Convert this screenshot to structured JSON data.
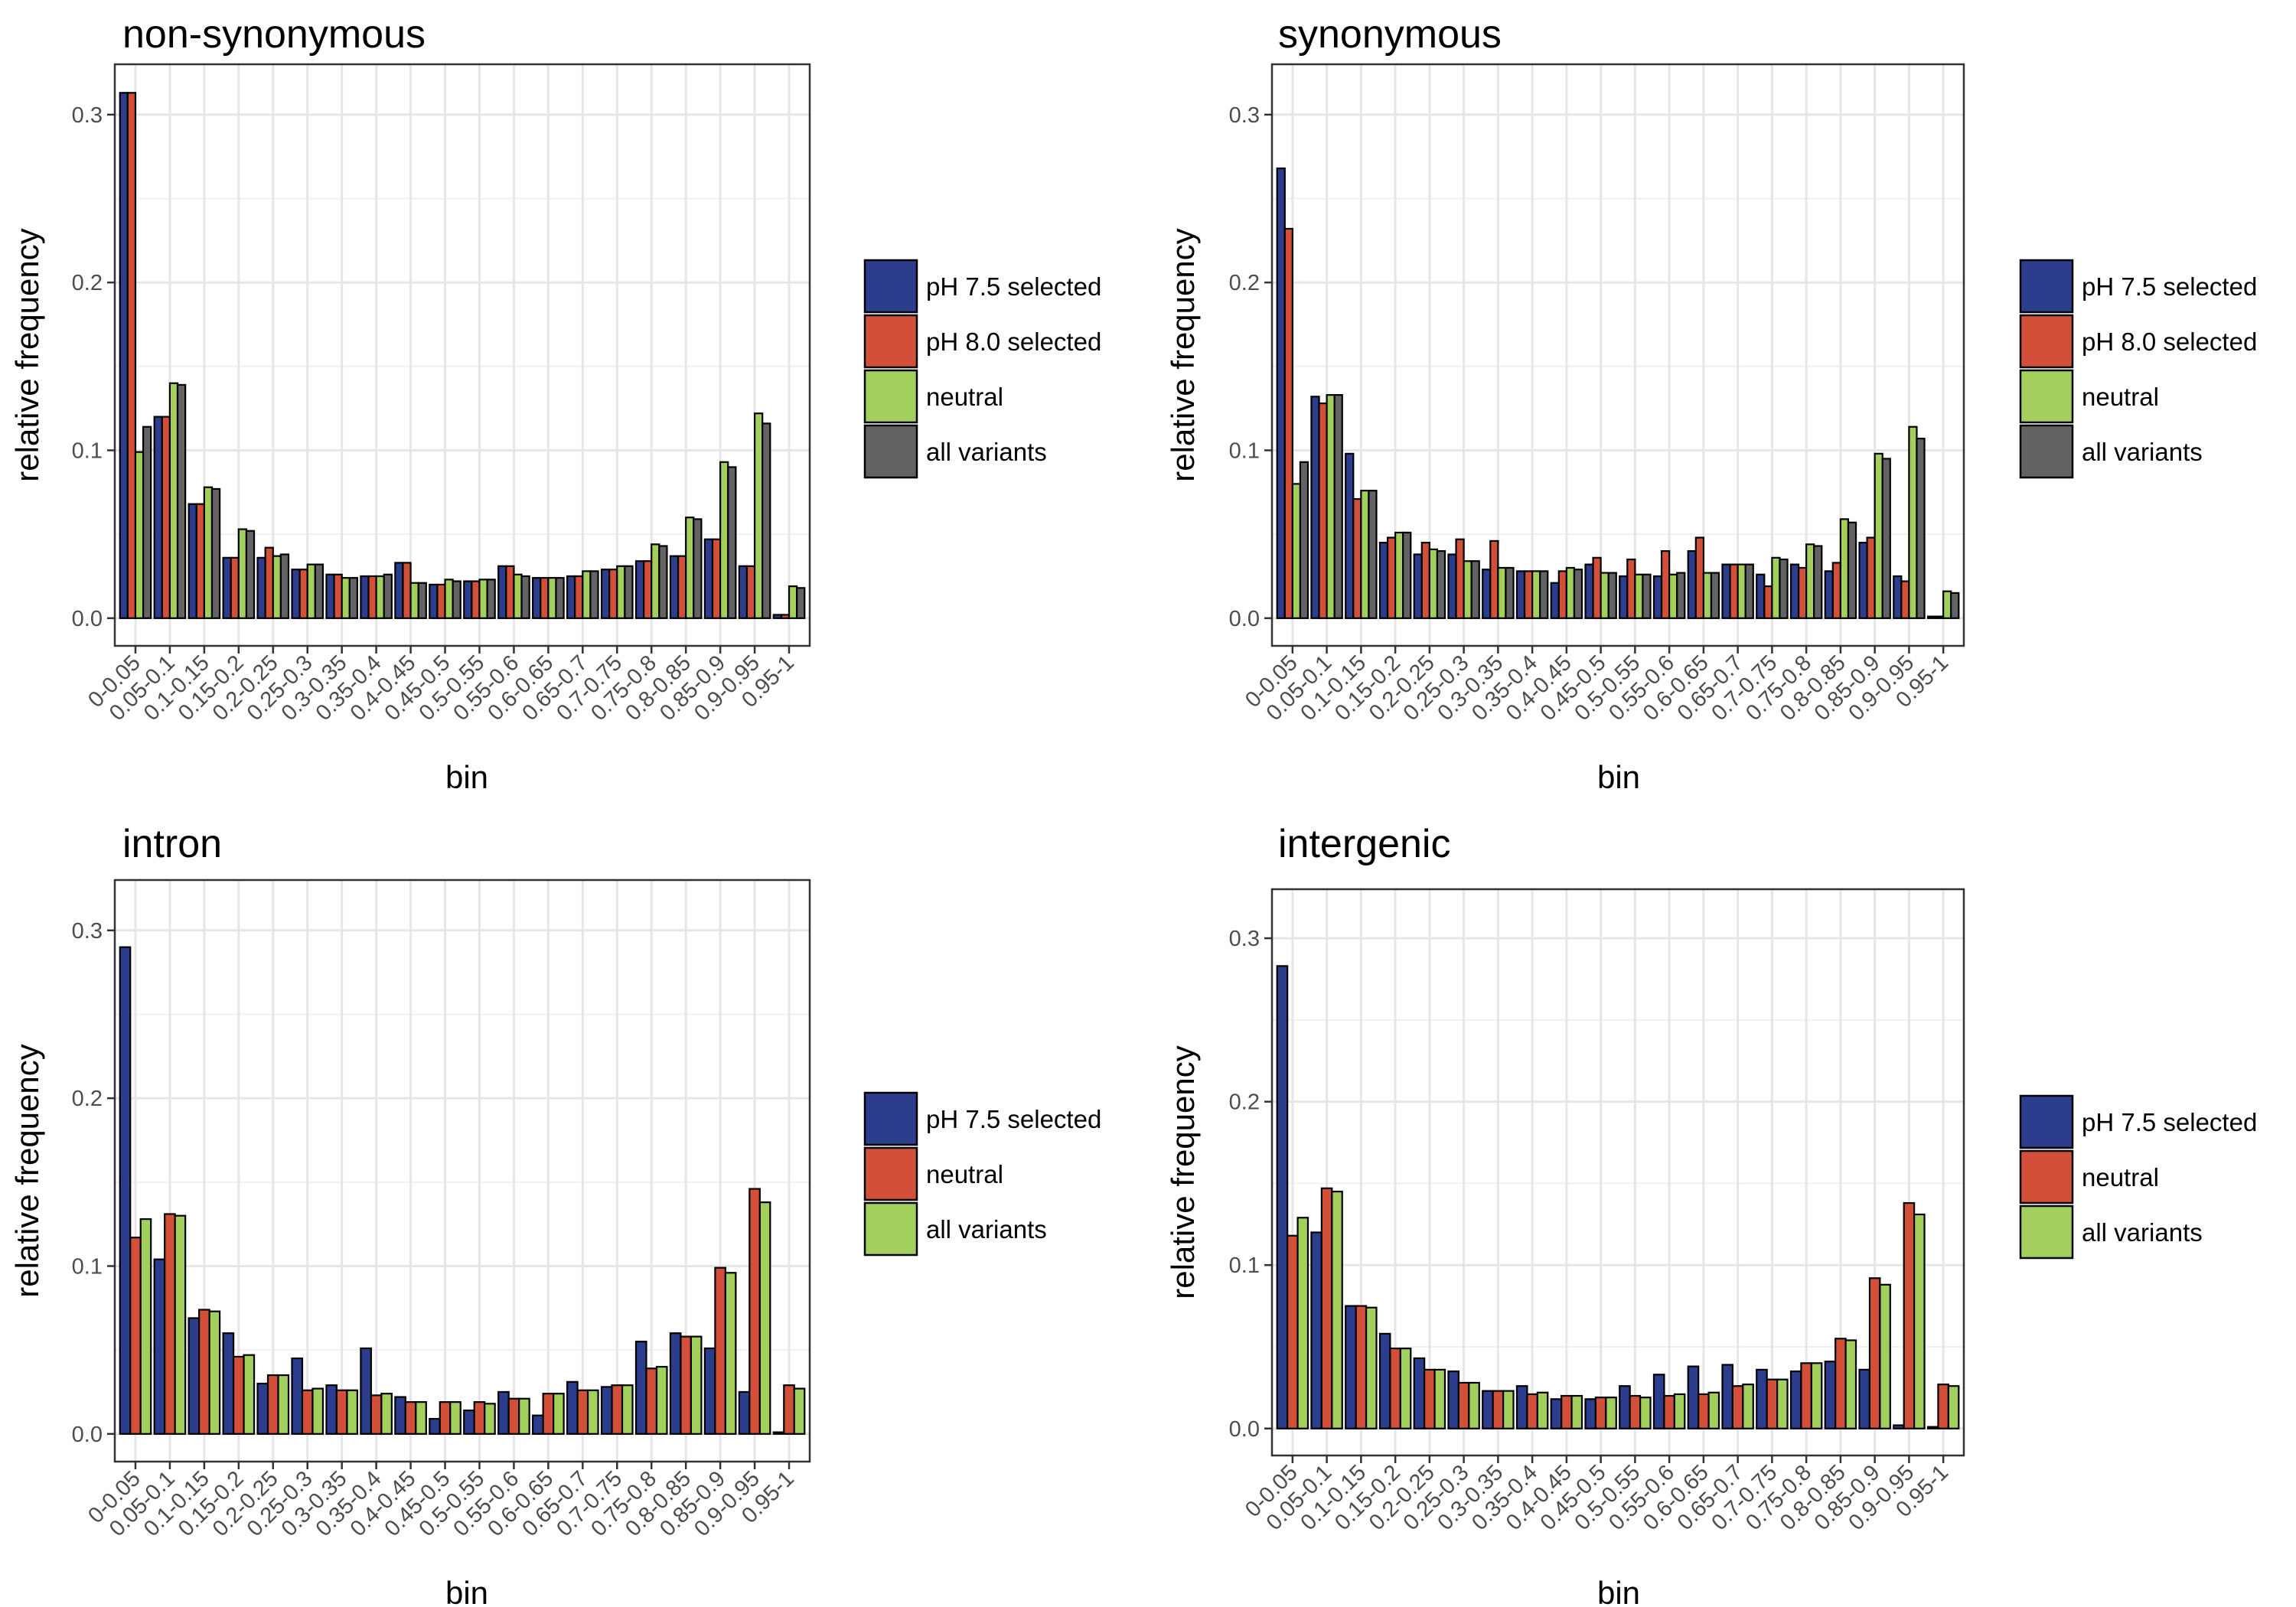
{
  "chart_data": [
    {
      "type": "bar",
      "title": "non-synonymous",
      "xlabel": "bin",
      "ylabel": "relative frequency",
      "ylim": [
        0,
        0.33
      ],
      "yticks": [
        "0.0",
        "0.1",
        "0.2",
        "0.3"
      ],
      "grid": true,
      "legend_position": "right",
      "categories": [
        "0-0.05",
        "0.05-0.1",
        "0.1-0.15",
        "0.15-0.2",
        "0.2-0.25",
        "0.25-0.3",
        "0.3-0.35",
        "0.35-0.4",
        "0.4-0.45",
        "0.45-0.5",
        "0.5-0.55",
        "0.55-0.6",
        "0.6-0.65",
        "0.65-0.7",
        "0.7-0.75",
        "0.75-0.8",
        "0.8-0.85",
        "0.85-0.9",
        "0.9-0.95",
        "0.95-1"
      ],
      "series": [
        {
          "name": "pH 7.5 selected",
          "color": "#2b3d8c",
          "values": [
            0.313,
            0.12,
            0.068,
            0.036,
            0.036,
            0.029,
            0.026,
            0.025,
            0.033,
            0.02,
            0.022,
            0.031,
            0.024,
            0.025,
            0.029,
            0.034,
            0.037,
            0.047,
            0.031,
            0.002
          ]
        },
        {
          "name": "pH 8.0 selected",
          "color": "#d2503a",
          "values": [
            0.313,
            0.12,
            0.068,
            0.036,
            0.042,
            0.029,
            0.026,
            0.025,
            0.033,
            0.02,
            0.022,
            0.031,
            0.024,
            0.025,
            0.029,
            0.034,
            0.037,
            0.047,
            0.031,
            0.002
          ]
        },
        {
          "name": "neutral",
          "color": "#a3cf5d",
          "values": [
            0.099,
            0.14,
            0.078,
            0.053,
            0.037,
            0.032,
            0.024,
            0.025,
            0.021,
            0.023,
            0.023,
            0.026,
            0.024,
            0.028,
            0.031,
            0.044,
            0.06,
            0.093,
            0.122,
            0.019
          ]
        },
        {
          "name": "all variants",
          "color": "#636363",
          "values": [
            0.114,
            0.139,
            0.077,
            0.052,
            0.038,
            0.032,
            0.024,
            0.026,
            0.021,
            0.022,
            0.023,
            0.025,
            0.024,
            0.028,
            0.031,
            0.043,
            0.059,
            0.09,
            0.116,
            0.018
          ]
        }
      ]
    },
    {
      "type": "bar",
      "title": "synonymous",
      "xlabel": "bin",
      "ylabel": "relative frequency",
      "ylim": [
        0,
        0.33
      ],
      "yticks": [
        "0.0",
        "0.1",
        "0.2",
        "0.3"
      ],
      "grid": true,
      "legend_position": "right",
      "categories": [
        "0-0.05",
        "0.05-0.1",
        "0.1-0.15",
        "0.15-0.2",
        "0.2-0.25",
        "0.25-0.3",
        "0.3-0.35",
        "0.35-0.4",
        "0.4-0.45",
        "0.45-0.5",
        "0.5-0.55",
        "0.55-0.6",
        "0.6-0.65",
        "0.65-0.7",
        "0.7-0.75",
        "0.75-0.8",
        "0.8-0.85",
        "0.85-0.9",
        "0.9-0.95",
        "0.95-1"
      ],
      "series": [
        {
          "name": "pH 7.5 selected",
          "color": "#2b3d8c",
          "values": [
            0.268,
            0.132,
            0.098,
            0.045,
            0.038,
            0.038,
            0.029,
            0.028,
            0.021,
            0.032,
            0.025,
            0.025,
            0.04,
            0.032,
            0.026,
            0.032,
            0.028,
            0.045,
            0.025,
            0.001
          ]
        },
        {
          "name": "pH 8.0 selected",
          "color": "#d2503a",
          "values": [
            0.232,
            0.128,
            0.071,
            0.048,
            0.045,
            0.047,
            0.046,
            0.028,
            0.028,
            0.036,
            0.035,
            0.04,
            0.048,
            0.032,
            0.019,
            0.03,
            0.033,
            0.048,
            0.022,
            0.001
          ]
        },
        {
          "name": "neutral",
          "color": "#a3cf5d",
          "values": [
            0.08,
            0.133,
            0.076,
            0.051,
            0.041,
            0.034,
            0.03,
            0.028,
            0.03,
            0.027,
            0.026,
            0.026,
            0.027,
            0.032,
            0.036,
            0.044,
            0.059,
            0.098,
            0.114,
            0.016
          ]
        },
        {
          "name": "all variants",
          "color": "#636363",
          "values": [
            0.093,
            0.133,
            0.076,
            0.051,
            0.04,
            0.034,
            0.03,
            0.028,
            0.029,
            0.027,
            0.026,
            0.027,
            0.027,
            0.032,
            0.035,
            0.043,
            0.057,
            0.095,
            0.107,
            0.015
          ]
        }
      ]
    },
    {
      "type": "bar",
      "title": "intron",
      "xlabel": "bin",
      "ylabel": "relative frequency",
      "ylim": [
        0,
        0.33
      ],
      "yticks": [
        "0.0",
        "0.1",
        "0.2",
        "0.3"
      ],
      "grid": true,
      "legend_position": "right",
      "categories": [
        "0-0.05",
        "0.05-0.1",
        "0.1-0.15",
        "0.15-0.2",
        "0.2-0.25",
        "0.25-0.3",
        "0.3-0.35",
        "0.35-0.4",
        "0.4-0.45",
        "0.45-0.5",
        "0.5-0.55",
        "0.55-0.6",
        "0.6-0.65",
        "0.65-0.7",
        "0.7-0.75",
        "0.75-0.8",
        "0.8-0.85",
        "0.85-0.9",
        "0.9-0.95",
        "0.95-1"
      ],
      "series": [
        {
          "name": "pH 7.5 selected",
          "color": "#2b3d8c",
          "values": [
            0.29,
            0.104,
            0.069,
            0.06,
            0.03,
            0.045,
            0.029,
            0.051,
            0.022,
            0.009,
            0.014,
            0.025,
            0.011,
            0.031,
            0.028,
            0.055,
            0.06,
            0.051,
            0.025,
            0.001
          ]
        },
        {
          "name": "neutral",
          "color": "#d2503a",
          "values": [
            0.117,
            0.131,
            0.074,
            0.046,
            0.035,
            0.026,
            0.026,
            0.023,
            0.019,
            0.019,
            0.019,
            0.021,
            0.024,
            0.026,
            0.029,
            0.039,
            0.058,
            0.099,
            0.146,
            0.029
          ]
        },
        {
          "name": "all variants",
          "color": "#a3cf5d",
          "values": [
            0.128,
            0.13,
            0.073,
            0.047,
            0.035,
            0.027,
            0.026,
            0.024,
            0.019,
            0.019,
            0.018,
            0.021,
            0.024,
            0.026,
            0.029,
            0.04,
            0.058,
            0.096,
            0.138,
            0.027
          ]
        }
      ]
    },
    {
      "type": "bar",
      "title": "intergenic",
      "xlabel": "bin",
      "ylabel": "relative frequency",
      "ylim": [
        0,
        0.33
      ],
      "yticks": [
        "0.0",
        "0.1",
        "0.2",
        "0.3"
      ],
      "grid": true,
      "legend_position": "right",
      "categories": [
        "0-0.05",
        "0.05-0.1",
        "0.1-0.15",
        "0.15-0.2",
        "0.2-0.25",
        "0.25-0.3",
        "0.3-0.35",
        "0.35-0.4",
        "0.4-0.45",
        "0.45-0.5",
        "0.5-0.55",
        "0.55-0.6",
        "0.6-0.65",
        "0.65-0.7",
        "0.7-0.75",
        "0.75-0.8",
        "0.8-0.85",
        "0.85-0.9",
        "0.9-0.95",
        "0.95-1"
      ],
      "series": [
        {
          "name": "pH 7.5 selected",
          "color": "#2b3d8c",
          "values": [
            0.283,
            0.12,
            0.075,
            0.058,
            0.043,
            0.035,
            0.023,
            0.026,
            0.018,
            0.018,
            0.026,
            0.033,
            0.038,
            0.039,
            0.036,
            0.035,
            0.041,
            0.036,
            0.002,
            0.001
          ]
        },
        {
          "name": "neutral",
          "color": "#d2503a",
          "values": [
            0.118,
            0.147,
            0.075,
            0.049,
            0.036,
            0.028,
            0.023,
            0.021,
            0.02,
            0.019,
            0.02,
            0.02,
            0.021,
            0.026,
            0.03,
            0.04,
            0.055,
            0.092,
            0.138,
            0.027
          ]
        },
        {
          "name": "all variants",
          "color": "#a3cf5d",
          "values": [
            0.129,
            0.145,
            0.074,
            0.049,
            0.036,
            0.028,
            0.023,
            0.022,
            0.02,
            0.019,
            0.019,
            0.021,
            0.022,
            0.027,
            0.03,
            0.04,
            0.054,
            0.088,
            0.131,
            0.026
          ]
        }
      ]
    }
  ]
}
